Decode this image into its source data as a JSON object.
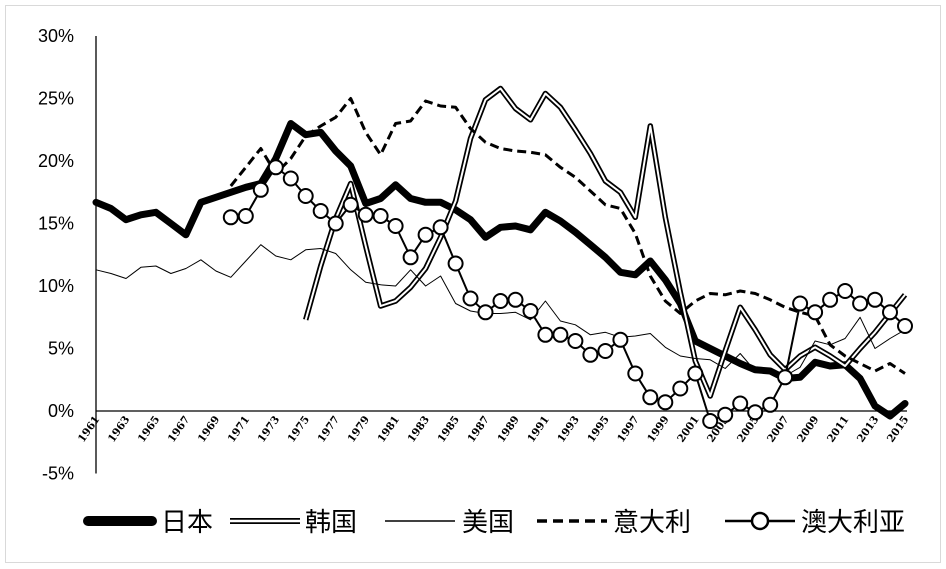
{
  "colors": {
    "background": "#ffffff",
    "border": "#d9d9d9",
    "axis": "#000000"
  },
  "chart_data": {
    "type": "line",
    "xlim": [
      1961,
      2015
    ],
    "ylim": [
      -5,
      30
    ],
    "grid": false,
    "legend": "bottom",
    "y_ticks": [
      30,
      25,
      20,
      15,
      10,
      5,
      0,
      -5
    ],
    "y_tick_labels": [
      "30%",
      "25%",
      "20%",
      "15%",
      "10%",
      "5%",
      "0%",
      "-5%"
    ],
    "x_tick_labels": [
      "1961",
      "1963",
      "1965",
      "1967",
      "1969",
      "1971",
      "1973",
      "1975",
      "1977",
      "1979",
      "1981",
      "1983",
      "1985",
      "1987",
      "1989",
      "1991",
      "1993",
      "1995",
      "1997",
      "1999",
      "2001",
      "2003",
      "2005",
      "2007",
      "2009",
      "2011",
      "2013",
      "2015"
    ],
    "x": [
      1961,
      1962,
      1963,
      1964,
      1965,
      1966,
      1967,
      1968,
      1969,
      1970,
      1971,
      1972,
      1973,
      1974,
      1975,
      1976,
      1977,
      1978,
      1979,
      1980,
      1981,
      1982,
      1983,
      1984,
      1985,
      1986,
      1987,
      1988,
      1989,
      1990,
      1991,
      1992,
      1993,
      1994,
      1995,
      1996,
      1997,
      1998,
      1999,
      2000,
      2001,
      2002,
      2003,
      2004,
      2005,
      2006,
      2007,
      2008,
      2009,
      2010,
      2011,
      2012,
      2013,
      2014,
      2015
    ],
    "series": [
      {
        "name": "日本",
        "line_style": "thick",
        "color": "#000000",
        "values": [
          16.7,
          16.2,
          15.3,
          15.7,
          15.9,
          15.0,
          14.1,
          16.7,
          17.1,
          17.5,
          17.9,
          18.2,
          20.2,
          23.0,
          22.1,
          22.3,
          20.8,
          19.6,
          16.6,
          17.0,
          18.1,
          17.0,
          16.7,
          16.7,
          16.1,
          15.3,
          13.9,
          14.7,
          14.8,
          14.5,
          15.9,
          15.2,
          14.3,
          13.3,
          12.3,
          11.1,
          10.9,
          12.0,
          10.5,
          8.6,
          5.6,
          5.0,
          4.4,
          3.8,
          3.3,
          3.2,
          2.6,
          2.7,
          3.9,
          3.6,
          3.7,
          2.6,
          0.4,
          -0.4,
          0.6
        ]
      },
      {
        "name": "韩国",
        "line_style": "double",
        "color": "#000000",
        "values": [
          null,
          null,
          null,
          null,
          null,
          null,
          null,
          null,
          null,
          null,
          null,
          null,
          null,
          null,
          7.3,
          11.6,
          15.4,
          18.2,
          13.2,
          8.4,
          8.8,
          9.9,
          11.4,
          13.9,
          16.8,
          21.8,
          24.9,
          25.8,
          24.2,
          23.3,
          25.4,
          24.3,
          22.5,
          20.6,
          18.4,
          17.5,
          15.5,
          22.8,
          15.5,
          9.5,
          4.0,
          1.2,
          4.8,
          8.3,
          6.5,
          4.5,
          3.3,
          4.4,
          5.1,
          4.4,
          3.6,
          5.0,
          6.3,
          7.8,
          9.3
        ]
      },
      {
        "name": "美国",
        "line_style": "thin",
        "color": "#000000",
        "values": [
          11.3,
          11.0,
          10.6,
          11.5,
          11.6,
          11.0,
          11.4,
          12.1,
          11.2,
          10.7,
          12.0,
          13.3,
          12.4,
          12.1,
          12.9,
          13.0,
          12.6,
          11.3,
          10.3,
          10.1,
          10.0,
          11.3,
          10.0,
          10.8,
          8.6,
          8.0,
          7.8,
          7.8,
          7.9,
          7.3,
          8.8,
          7.2,
          6.9,
          6.1,
          6.3,
          5.9,
          6.0,
          6.2,
          5.1,
          4.4,
          4.2,
          4.1,
          3.4,
          4.6,
          3.2,
          3.3,
          2.8,
          3.5,
          5.6,
          5.3,
          5.8,
          7.5,
          5.0,
          5.8,
          6.5
        ]
      },
      {
        "name": "意大利",
        "line_style": "dashed",
        "color": "#000000",
        "values": [
          null,
          null,
          null,
          null,
          null,
          null,
          null,
          null,
          null,
          18.0,
          19.5,
          21.0,
          19.0,
          20.2,
          22.0,
          22.8,
          23.5,
          25.0,
          22.3,
          20.5,
          23.0,
          23.2,
          24.8,
          24.4,
          24.3,
          22.6,
          21.5,
          21.0,
          20.8,
          20.7,
          20.5,
          19.5,
          18.7,
          17.6,
          16.5,
          16.2,
          14.2,
          10.8,
          8.8,
          7.8,
          8.8,
          9.4,
          9.3,
          9.6,
          9.4,
          8.9,
          8.3,
          7.9,
          7.6,
          5.3,
          4.4,
          3.8,
          3.2,
          3.8,
          3.0
        ]
      },
      {
        "name": "澳大利亚",
        "line_style": "solid",
        "marker": "circle",
        "color": "#000000",
        "values": [
          null,
          null,
          null,
          null,
          null,
          null,
          null,
          null,
          null,
          15.5,
          15.6,
          17.7,
          19.5,
          18.6,
          17.2,
          16.0,
          15.0,
          16.5,
          15.7,
          15.6,
          14.8,
          12.3,
          14.1,
          14.7,
          11.8,
          9.0,
          7.9,
          8.8,
          8.9,
          8.0,
          6.1,
          6.1,
          5.6,
          4.5,
          4.8,
          5.7,
          3.0,
          1.1,
          0.7,
          1.8,
          3.0,
          -0.8,
          -0.3,
          0.6,
          -0.1,
          0.5,
          2.7,
          8.6,
          7.9,
          8.9,
          9.6,
          8.6,
          8.9,
          7.9,
          6.8
        ]
      }
    ]
  }
}
